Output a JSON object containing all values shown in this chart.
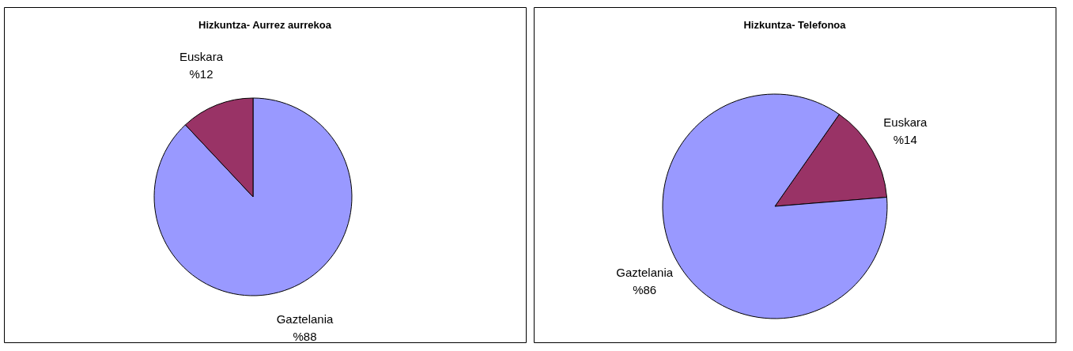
{
  "chart_data": [
    {
      "type": "pie",
      "title": "Hizkuntza- Aurrez aurrekoa",
      "categories": [
        "Gaztelania",
        "Euskara"
      ],
      "values": [
        88,
        12
      ],
      "colors": [
        "#9999ff",
        "#993366"
      ],
      "value_labels": [
        "%88",
        "%12"
      ]
    },
    {
      "type": "pie",
      "title": "Hizkuntza- Telefonoa",
      "categories": [
        "Euskara",
        "Gaztelania"
      ],
      "values": [
        14,
        86
      ],
      "colors": [
        "#993366",
        "#9999ff"
      ],
      "value_labels": [
        "%14",
        "%86"
      ]
    }
  ]
}
